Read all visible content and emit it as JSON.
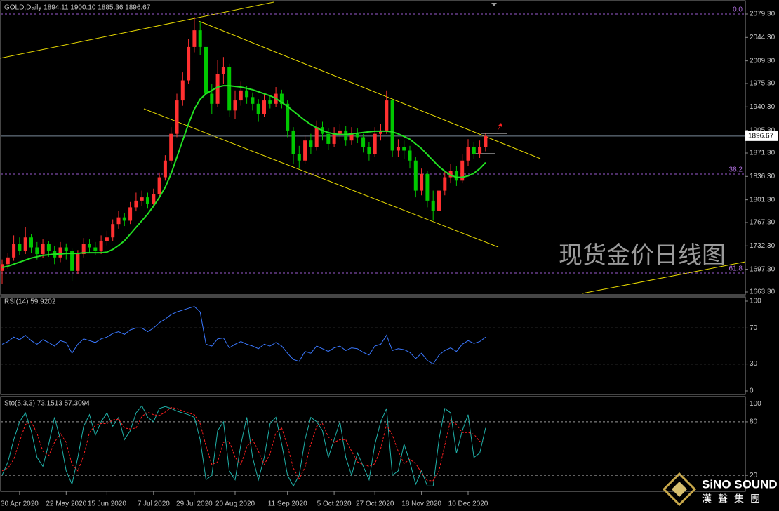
{
  "chart_data": [
    {
      "type": "candlestick",
      "title": "GOLD,Daily  1894.11 1900.10 1885.36 1896.67",
      "categories": [
        null,
        null,
        null,
        "30 Apr 2020",
        null,
        null,
        null,
        null,
        null,
        null,
        null,
        "22 May 2020",
        null,
        null,
        null,
        null,
        null,
        null,
        "15 Jun 2020",
        null,
        null,
        null,
        null,
        null,
        null,
        null,
        "7 Jul 2020",
        null,
        null,
        null,
        null,
        null,
        null,
        "29 Jul 2020",
        null,
        null,
        null,
        null,
        null,
        null,
        "20 Aug 2020",
        null,
        null,
        null,
        null,
        null,
        null,
        null,
        null,
        "11 Sep 2020",
        null,
        null,
        null,
        null,
        null,
        null,
        null,
        "5 Oct 2020",
        null,
        null,
        null,
        null,
        null,
        null,
        "27 Oct 2020",
        null,
        null,
        null,
        null,
        null,
        null,
        null,
        "18 Nov 2020",
        null,
        null,
        null,
        null,
        null,
        null,
        null,
        "10 Dec 2020",
        null,
        null,
        null
      ],
      "open": [
        1695,
        1705,
        1715,
        1735,
        1725,
        1745,
        1730,
        1720,
        1735,
        1725,
        1715,
        1730,
        1725,
        1695,
        1720,
        1735,
        1730,
        1725,
        1740,
        1745,
        1765,
        1775,
        1770,
        1790,
        1800,
        1805,
        1795,
        1810,
        1835,
        1860,
        1900,
        1950,
        1980,
        2030,
        2055,
        2030,
        1960,
        1945,
        1990,
        2000,
        1935,
        1950,
        1965,
        1955,
        1945,
        1930,
        1950,
        1945,
        1960,
        1945,
        1905,
        1870,
        1860,
        1890,
        1880,
        1910,
        1900,
        1885,
        1900,
        1905,
        1890,
        1900,
        1895,
        1880,
        1870,
        1900,
        1905,
        1950,
        1875,
        1880,
        1875,
        1860,
        1815,
        1840,
        1800,
        1785,
        1815,
        1835,
        1845,
        1830,
        1860,
        1880,
        1870,
        1880
      ],
      "high": [
        1712,
        1722,
        1748,
        1745,
        1760,
        1750,
        1738,
        1742,
        1740,
        1732,
        1738,
        1736,
        1728,
        1726,
        1744,
        1742,
        1738,
        1748,
        1755,
        1772,
        1785,
        1782,
        1798,
        1812,
        1815,
        1812,
        1818,
        1842,
        1868,
        1910,
        1960,
        1992,
        2042,
        2075,
        2068,
        2040,
        1975,
        2010,
        2015,
        2005,
        1965,
        1978,
        1972,
        1962,
        1952,
        1960,
        1958,
        1970,
        1966,
        1950,
        1910,
        1882,
        1898,
        1900,
        1920,
        1918,
        1908,
        1910,
        1915,
        1912,
        1910,
        1908,
        1900,
        1888,
        1910,
        1915,
        1965,
        1952,
        1892,
        1890,
        1882,
        1865,
        1848,
        1845,
        1815,
        1825,
        1845,
        1855,
        1852,
        1870,
        1892,
        1888,
        1890,
        1900.1
      ],
      "low": [
        1675,
        1698,
        1710,
        1718,
        1720,
        1722,
        1712,
        1714,
        1716,
        1705,
        1708,
        1712,
        1680,
        1690,
        1715,
        1722,
        1718,
        1720,
        1733,
        1740,
        1758,
        1762,
        1765,
        1784,
        1792,
        1788,
        1790,
        1805,
        1830,
        1855,
        1895,
        1942,
        1975,
        2022,
        2018,
        1865,
        1930,
        1940,
        1975,
        1925,
        1922,
        1942,
        1945,
        1935,
        1918,
        1925,
        1938,
        1940,
        1938,
        1895,
        1855,
        1848,
        1855,
        1870,
        1875,
        1890,
        1876,
        1880,
        1892,
        1882,
        1884,
        1886,
        1872,
        1860,
        1865,
        1890,
        1900,
        1865,
        1866,
        1862,
        1848,
        1805,
        1808,
        1790,
        1770,
        1780,
        1808,
        1826,
        1822,
        1826,
        1852,
        1862,
        1864,
        1874
      ],
      "close": [
        1705,
        1715,
        1735,
        1725,
        1745,
        1730,
        1720,
        1735,
        1725,
        1715,
        1730,
        1725,
        1695,
        1720,
        1735,
        1730,
        1725,
        1740,
        1745,
        1765,
        1775,
        1770,
        1790,
        1800,
        1805,
        1795,
        1810,
        1835,
        1860,
        1900,
        1950,
        1980,
        2030,
        2055,
        2030,
        1960,
        1945,
        1990,
        2000,
        1935,
        1950,
        1965,
        1955,
        1945,
        1930,
        1950,
        1945,
        1960,
        1945,
        1905,
        1870,
        1860,
        1890,
        1880,
        1910,
        1900,
        1885,
        1900,
        1905,
        1890,
        1900,
        1895,
        1880,
        1870,
        1900,
        1905,
        1950,
        1875,
        1880,
        1875,
        1860,
        1815,
        1840,
        1800,
        1785,
        1815,
        1835,
        1845,
        1830,
        1860,
        1880,
        1870,
        1880,
        1896.67
      ],
      "up_color": "#ff3030",
      "down_color": "#00c800",
      "moving_average": {
        "color": "#22e022",
        "values": [
          1700,
          1702,
          1705,
          1708,
          1711,
          1714,
          1716,
          1718,
          1719,
          1720,
          1720,
          1721,
          1721,
          1721,
          1722,
          1722,
          1722,
          1722,
          1723,
          1727,
          1733,
          1740,
          1750,
          1760,
          1770,
          1780,
          1792,
          1805,
          1820,
          1840,
          1865,
          1890,
          1915,
          1937,
          1952,
          1960,
          1965,
          1970,
          1972,
          1972,
          1971,
          1970,
          1968,
          1966,
          1963,
          1960,
          1957,
          1953,
          1947,
          1941,
          1934,
          1927,
          1920,
          1914,
          1909,
          1905,
          1902,
          1900,
          1899,
          1899,
          1900,
          1901,
          1902,
          1903,
          1904,
          1904,
          1904,
          1903,
          1900,
          1896,
          1892,
          1885,
          1878,
          1869,
          1860,
          1851,
          1844,
          1838,
          1835,
          1835,
          1837,
          1841,
          1848,
          1857
        ]
      },
      "ylim": [
        1659.1,
        2098.2
      ],
      "yticks": [
        {
          "value": 2079.3,
          "label": "2079.30"
        },
        {
          "value": 2044.3,
          "label": "2044.30"
        },
        {
          "value": 2009.3,
          "label": "2009.30"
        },
        {
          "value": 1975.3,
          "label": "1975.30"
        },
        {
          "value": 1940.3,
          "label": "1940.30"
        },
        {
          "value": 1905.3,
          "label": "1905.30"
        },
        {
          "value": 1871.3,
          "label": "1871.30"
        },
        {
          "value": 1836.3,
          "label": "1836.30"
        },
        {
          "value": 1801.3,
          "label": "1801.30"
        },
        {
          "value": 1767.3,
          "label": "1767.30"
        },
        {
          "value": 1732.3,
          "label": "1732.30"
        },
        {
          "value": 1697.3,
          "label": "1697.30"
        },
        {
          "value": 1663.3,
          "label": "1663.30"
        }
      ],
      "last_price": {
        "value": 1896.67,
        "label": "1896.67"
      },
      "fib_levels": [
        {
          "value": 2079.3,
          "label": "0.0"
        },
        {
          "value": 1839.8,
          "label": "38.2"
        },
        {
          "value": 1691.7,
          "label": "61.8"
        }
      ],
      "annotation": "现货金价日线图"
    },
    {
      "type": "line",
      "title": "RSI(14) 59.9202",
      "series": [
        {
          "color": "#3a78ff",
          "values": [
            52,
            55,
            60,
            57,
            62,
            56,
            52,
            57,
            54,
            50,
            56,
            54,
            42,
            52,
            58,
            56,
            54,
            58,
            60,
            64,
            66,
            63,
            68,
            70,
            70,
            66,
            70,
            76,
            80,
            85,
            88,
            90,
            92,
            94,
            88,
            52,
            50,
            58,
            59,
            48,
            52,
            55,
            52,
            50,
            47,
            52,
            50,
            54,
            50,
            42,
            35,
            33,
            44,
            42,
            50,
            47,
            44,
            48,
            50,
            45,
            48,
            47,
            43,
            40,
            50,
            52,
            62,
            45,
            47,
            46,
            43,
            36,
            42,
            34,
            30,
            40,
            45,
            48,
            44,
            52,
            56,
            53,
            55,
            59.92
          ]
        }
      ],
      "ylim": [
        -3.9,
        103.9
      ],
      "yticks": [
        100,
        70,
        30,
        0
      ],
      "levels": [
        70,
        30
      ]
    },
    {
      "type": "line",
      "title": "Sto(5,3,3) 73.1513 57.3094",
      "series": [
        {
          "color": "#20b2aa",
          "values": [
            20,
            35,
            60,
            80,
            90,
            70,
            40,
            30,
            55,
            85,
            60,
            25,
            10,
            40,
            75,
            88,
            65,
            80,
            90,
            75,
            85,
            60,
            70,
            90,
            98,
            85,
            80,
            95,
            97,
            95,
            92,
            90,
            88,
            85,
            60,
            15,
            20,
            70,
            80,
            25,
            15,
            55,
            85,
            40,
            15,
            40,
            78,
            85,
            55,
            20,
            8,
            20,
            60,
            85,
            80,
            70,
            40,
            60,
            80,
            40,
            20,
            45,
            30,
            15,
            55,
            80,
            95,
            20,
            25,
            55,
            35,
            10,
            25,
            8,
            8,
            60,
            95,
            90,
            45,
            70,
            88,
            40,
            45,
            73.1513
          ]
        },
        {
          "color": "#ff2020",
          "dashed": true,
          "values": [
            25,
            28,
            38,
            58,
            77,
            80,
            67,
            47,
            42,
            57,
            67,
            57,
            32,
            25,
            42,
            68,
            76,
            78,
            78,
            82,
            83,
            73,
            72,
            73,
            86,
            91,
            88,
            87,
            91,
            96,
            95,
            92,
            90,
            88,
            78,
            53,
            32,
            35,
            57,
            58,
            40,
            32,
            52,
            60,
            47,
            32,
            44,
            68,
            73,
            53,
            28,
            16,
            29,
            55,
            75,
            78,
            63,
            57,
            60,
            60,
            47,
            35,
            32,
            30,
            33,
            50,
            77,
            65,
            47,
            33,
            38,
            33,
            23,
            14,
            14,
            25,
            54,
            82,
            77,
            68,
            68,
            66,
            58,
            57.3094
          ]
        }
      ],
      "ylim": [
        2,
        107.5
      ],
      "yticks": [
        100,
        80,
        20
      ],
      "levels": [
        80,
        20
      ]
    }
  ],
  "logo": {
    "name": "SiNO SOUND",
    "subtitle": "漢聲集團"
  }
}
